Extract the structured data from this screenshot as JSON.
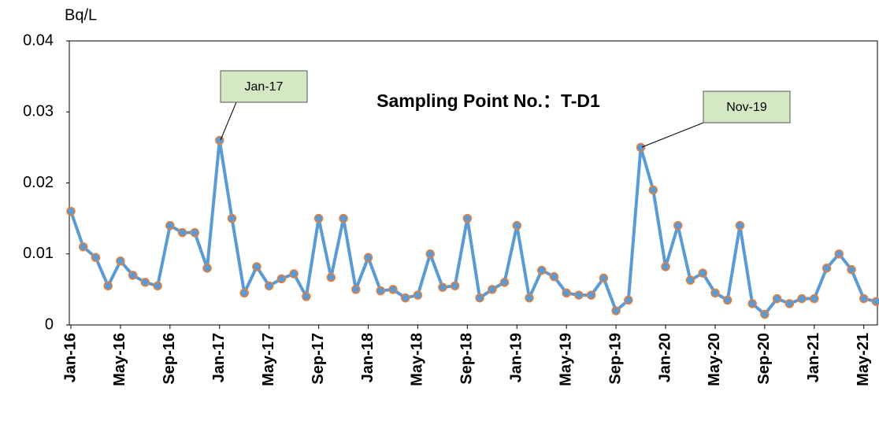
{
  "chart_data": {
    "type": "line",
    "title": "Sampling Point No.：T-D1",
    "y_label": "Bq/L",
    "categories": [
      "Jan-16",
      null,
      null,
      null,
      "May-16",
      null,
      null,
      null,
      "Sep-16",
      null,
      null,
      null,
      "Jan-17",
      null,
      null,
      null,
      "May-17",
      null,
      null,
      null,
      "Sep-17",
      null,
      null,
      null,
      "Jan-18",
      null,
      null,
      null,
      "May-18",
      null,
      null,
      null,
      "Sep-18",
      null,
      null,
      null,
      "Jan-19",
      null,
      null,
      null,
      "May-19",
      null,
      null,
      null,
      "Sep-19",
      null,
      null,
      null,
      "Jan-20",
      null,
      null,
      null,
      "May-20",
      null,
      null,
      null,
      "Sep-20",
      null,
      null,
      null,
      "Jan-21",
      null,
      null,
      null,
      "May-21",
      null
    ],
    "series": [
      {
        "name": "T-D1",
        "color": "#5b9bd5",
        "marker_edge": "#ed7d31",
        "values": [
          0.016,
          0.011,
          0.0095,
          0.0055,
          0.009,
          0.007,
          0.006,
          0.0055,
          0.014,
          0.013,
          0.013,
          0.008,
          0.026,
          0.015,
          0.0045,
          0.0082,
          0.0055,
          0.0065,
          0.0072,
          0.004,
          0.015,
          0.0067,
          0.015,
          0.005,
          0.0095,
          0.0048,
          0.005,
          0.0038,
          0.0042,
          0.01,
          0.0053,
          0.0055,
          0.015,
          0.0038,
          0.005,
          0.006,
          0.014,
          0.0038,
          0.0077,
          0.0068,
          0.0045,
          0.0042,
          0.0042,
          0.0066,
          0.002,
          0.0035,
          0.025,
          0.019,
          0.0082,
          0.014,
          0.0063,
          0.0073,
          0.0045,
          0.0035,
          0.014,
          0.003,
          0.0015,
          0.0037,
          0.003,
          0.0037,
          0.0037,
          0.008,
          0.01,
          0.0078,
          0.0037,
          0.0033
        ]
      }
    ],
    "ylim": [
      0,
      0.04
    ],
    "yticks": [
      0,
      0.01,
      0.02,
      0.03,
      0.04
    ],
    "grid": false,
    "annotations": [
      {
        "text": "Jan-17"
      },
      {
        "text": "Nov-19"
      }
    ]
  }
}
